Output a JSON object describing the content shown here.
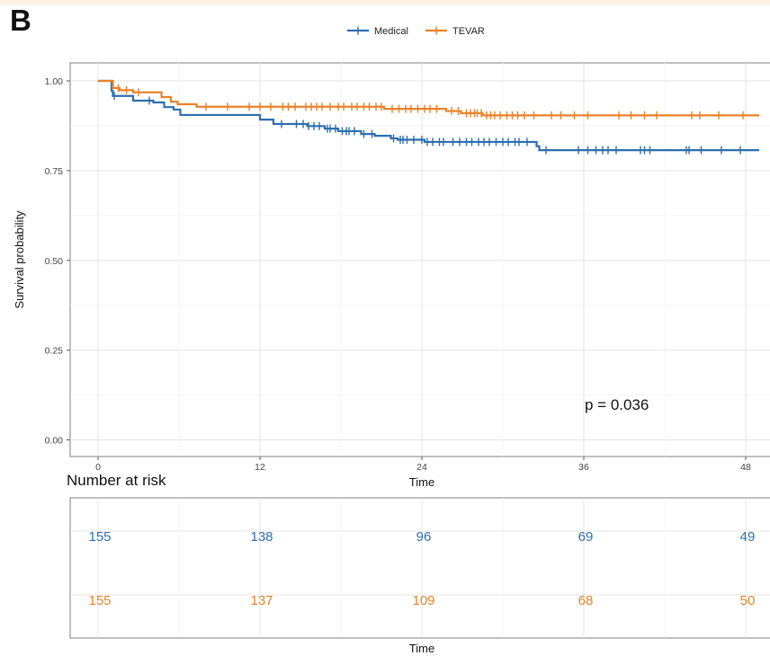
{
  "panel_label": "B",
  "chart_data": {
    "type": "line",
    "subtype": "kaplan-meier",
    "panel_label": "B",
    "xlabel": "Time",
    "ylabel": "Survival probability",
    "xlim": [
      -2,
      48
    ],
    "ylim": [
      -0.04,
      1.05
    ],
    "x_ticks": [
      0,
      12,
      24,
      36,
      48
    ],
    "y_ticks": [
      0.0,
      0.25,
      0.5,
      0.75,
      1.0
    ],
    "y_tick_labels": [
      "0.00",
      "0.25",
      "0.50",
      "0.75",
      "1.00"
    ],
    "grid": true,
    "legend_position": "top",
    "annotation": "p = 0.036",
    "series": [
      {
        "name": "Medical",
        "color": "#2d6fae",
        "steps": [
          [
            0,
            1.0
          ],
          [
            1,
            0.972
          ],
          [
            1.1,
            0.958
          ],
          [
            2.6,
            0.945
          ],
          [
            4.1,
            0.94
          ],
          [
            4.9,
            0.927
          ],
          [
            5.6,
            0.92
          ],
          [
            6.1,
            0.905
          ],
          [
            12,
            0.892
          ],
          [
            13,
            0.88
          ],
          [
            15.5,
            0.874
          ],
          [
            16.8,
            0.867
          ],
          [
            17.8,
            0.86
          ],
          [
            19.5,
            0.852
          ],
          [
            20.5,
            0.847
          ],
          [
            21.7,
            0.84
          ],
          [
            22.2,
            0.836
          ],
          [
            24.2,
            0.83
          ],
          [
            32.5,
            0.818
          ],
          [
            32.7,
            0.807
          ],
          [
            49,
            0.807
          ]
        ],
        "censors": [
          1.2,
          3.8,
          13.6,
          14.7,
          15.2,
          15.6,
          16.0,
          16.4,
          17.0,
          17.2,
          17.6,
          18.1,
          18.4,
          18.6,
          19.0,
          19.7,
          20.3,
          21.9,
          22.4,
          22.6,
          22.9,
          23.4,
          24.0,
          24.4,
          24.8,
          25.3,
          25.6,
          26.3,
          26.8,
          27.3,
          27.7,
          28.2,
          28.6,
          29.0,
          29.5,
          30.0,
          30.4,
          30.9,
          31.2,
          31.8,
          33.2,
          35.6,
          36.3,
          36.9,
          37.4,
          37.8,
          38.4,
          40.2,
          40.5,
          40.9,
          43.6,
          43.8,
          44.7,
          46.2,
          47.6
        ]
      },
      {
        "name": "TEVAR",
        "color": "#e8822a",
        "steps": [
          [
            0,
            1.0
          ],
          [
            1.1,
            0.98
          ],
          [
            1.6,
            0.974
          ],
          [
            2.6,
            0.968
          ],
          [
            4.7,
            0.955
          ],
          [
            5.4,
            0.942
          ],
          [
            5.9,
            0.935
          ],
          [
            7.3,
            0.928
          ],
          [
            21.2,
            0.922
          ],
          [
            25.8,
            0.916
          ],
          [
            26.9,
            0.91
          ],
          [
            28.5,
            0.904
          ],
          [
            49,
            0.904
          ]
        ],
        "censors": [
          1.5,
          2.1,
          3.0,
          8.0,
          9.6,
          11.2,
          12.0,
          12.8,
          13.7,
          14.1,
          14.6,
          15.4,
          15.8,
          16.2,
          16.6,
          17.2,
          17.8,
          18.2,
          18.8,
          19.2,
          19.7,
          20.1,
          20.6,
          21.0,
          21.8,
          22.3,
          22.8,
          23.2,
          23.7,
          24.2,
          24.6,
          25.1,
          26.2,
          26.7,
          27.3,
          27.6,
          27.9,
          28.1,
          28.4,
          28.8,
          29.1,
          29.4,
          29.8,
          30.3,
          30.7,
          31.1,
          31.6,
          32.3,
          33.6,
          34.3,
          35.3,
          36.3,
          38.6,
          39.5,
          40.5,
          41.4,
          44.0,
          44.6,
          46.0,
          47.8
        ]
      }
    ],
    "risk_table": {
      "title": "Number at risk",
      "xlabel": "Time",
      "times": [
        0,
        12,
        24,
        36,
        48
      ],
      "rows": [
        {
          "name": "Medical",
          "color": "#2d6fae",
          "values": [
            "155",
            "138",
            "96",
            "69",
            "49"
          ]
        },
        {
          "name": "TEVAR",
          "color": "#e8822a",
          "values": [
            "155",
            "137",
            "109",
            "68",
            "50"
          ]
        }
      ]
    }
  }
}
